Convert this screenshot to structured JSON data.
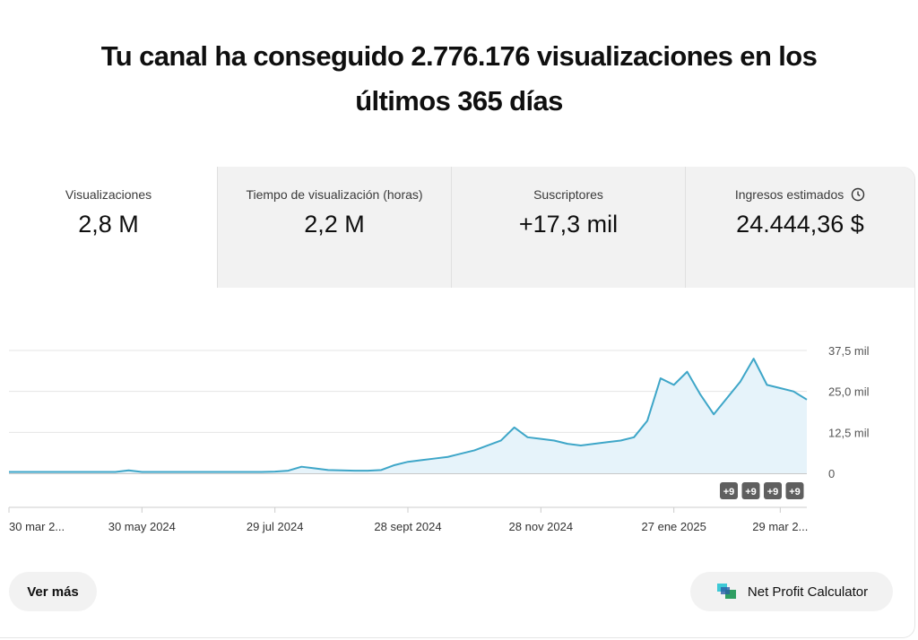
{
  "header": {
    "title": "Tu canal ha conseguido 2.776.176 visualizaciones en los últimos 365 días"
  },
  "metrics": [
    {
      "label": "Visualizaciones",
      "value": "2,8 M"
    },
    {
      "label": "Tiempo de visualización (horas)",
      "value": "2,2 M"
    },
    {
      "label": "Suscriptores",
      "value": "+17,3 mil"
    },
    {
      "label": "Ingresos estimados",
      "value": "24.444,36 $"
    }
  ],
  "chart_data": {
    "type": "line",
    "color": "#3ea6c8",
    "values": [
      400,
      400,
      400,
      400,
      400,
      400,
      400,
      400,
      400,
      900,
      400,
      400,
      400,
      400,
      400,
      400,
      400,
      400,
      400,
      400,
      500,
      800,
      2000,
      1500,
      1000,
      900,
      800,
      800,
      1000,
      2500,
      3500,
      4000,
      4500,
      5000,
      6000,
      7000,
      8500,
      10000,
      14000,
      11000,
      10500,
      10000,
      9000,
      8500,
      9000,
      9500,
      10000,
      11000,
      16000,
      29000,
      27000,
      31000,
      24000,
      18000,
      23000,
      28000,
      35000,
      27000,
      26000,
      25000,
      22500
    ],
    "xlim": [
      0,
      60
    ],
    "xticks": [
      {
        "value": 0,
        "label": "30 mar 2..."
      },
      {
        "value": 10,
        "label": "30 may 2024"
      },
      {
        "value": 20,
        "label": "29 jul 2024"
      },
      {
        "value": 30,
        "label": "28 sept 2024"
      },
      {
        "value": 40,
        "label": "28 nov 2024"
      },
      {
        "value": 50,
        "label": "27 ene 2025"
      },
      {
        "value": 58,
        "label": "29 mar 2..."
      }
    ],
    "ylim": [
      0,
      37500
    ],
    "yticks": [
      0,
      {
        "value": 12500,
        "label": "12,5 mil"
      },
      {
        "value": 25000,
        "label": "25,0 mil"
      },
      {
        "value": 37500,
        "label": "37,5 mil"
      }
    ],
    "grid": true,
    "annotations": [
      "+9",
      "+9",
      "+9",
      "+9"
    ]
  },
  "buttons": {
    "more": "Ver más",
    "calculator": "Net Profit Calculator"
  }
}
